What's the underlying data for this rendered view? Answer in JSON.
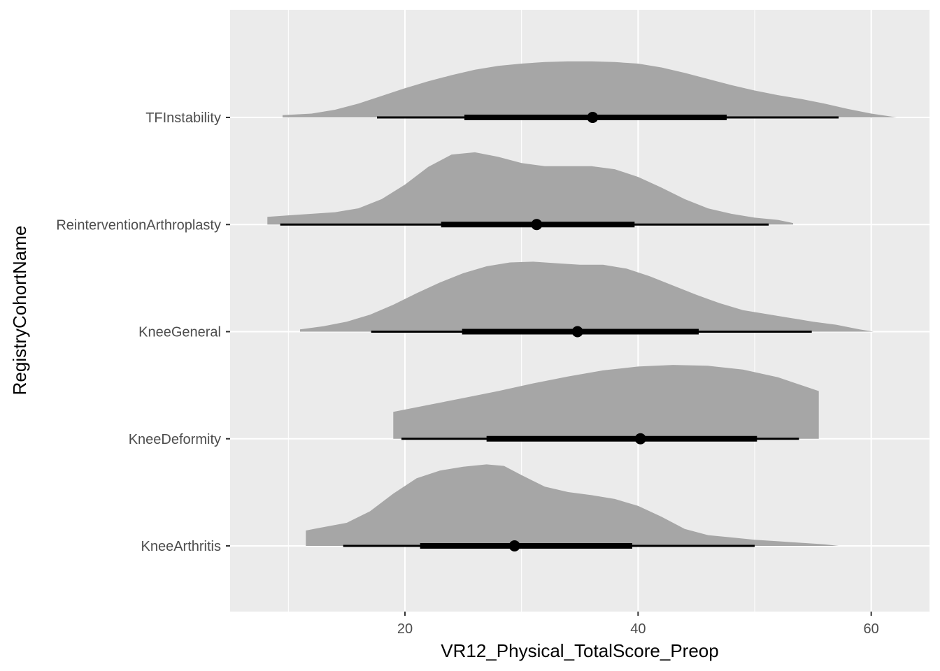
{
  "chart_data": {
    "type": "halfeye",
    "xlabel": "VR12_Physical_TotalScore_Preop",
    "ylabel": "RegistryCohortName",
    "xlim": [
      5,
      65
    ],
    "x_ticks": [
      20,
      40,
      60
    ],
    "categories": [
      "KneeArthritis",
      "KneeDeformity",
      "KneeGeneral",
      "ReinterventionArthroplasty",
      "TFInstability"
    ],
    "grid": true,
    "colors": {
      "panel": "#ebebeb",
      "grid": "#ffffff",
      "density": "#a6a6a6",
      "interval": "#000000",
      "tick_text": "#4d4d4d",
      "tick_mark": "#333333"
    },
    "series": [
      {
        "name": "KneeArthritis",
        "point": 29.4,
        "interval_66": [
          21.3,
          39.5
        ],
        "interval_95": [
          14.7,
          50.0
        ],
        "density_x": [
          11.5,
          12.5,
          15,
          17,
          19,
          21,
          23,
          25,
          27,
          28.5,
          30,
          32,
          34,
          36,
          38,
          40,
          42,
          44,
          46,
          48,
          50,
          52,
          54,
          56,
          57.2
        ],
        "density_y": [
          0.2,
          0.23,
          0.3,
          0.45,
          0.68,
          0.88,
          0.98,
          1.03,
          1.06,
          1.04,
          0.92,
          0.77,
          0.7,
          0.66,
          0.61,
          0.52,
          0.38,
          0.22,
          0.14,
          0.11,
          0.08,
          0.06,
          0.04,
          0.02,
          0.0
        ]
      },
      {
        "name": "KneeDeformity",
        "point": 40.2,
        "interval_66": [
          27.0,
          50.2
        ],
        "interval_95": [
          19.7,
          53.8
        ],
        "density_x": [
          19.0,
          22,
          25,
          28,
          31,
          34,
          37,
          40,
          43,
          46,
          49,
          52,
          55.5
        ],
        "density_y": [
          0.35,
          0.44,
          0.53,
          0.62,
          0.72,
          0.81,
          0.89,
          0.94,
          0.96,
          0.95,
          0.9,
          0.8,
          0.62
        ]
      },
      {
        "name": "KneeGeneral",
        "point": 34.8,
        "interval_66": [
          24.9,
          45.2
        ],
        "interval_95": [
          17.1,
          54.9
        ],
        "density_x": [
          11.0,
          13,
          15,
          17,
          19,
          21,
          23,
          25,
          27,
          29,
          31,
          33,
          35,
          37,
          39,
          41,
          43,
          45,
          47,
          49,
          51,
          53,
          55,
          57,
          59,
          60.2
        ],
        "density_y": [
          0.03,
          0.07,
          0.13,
          0.22,
          0.35,
          0.5,
          0.64,
          0.76,
          0.85,
          0.9,
          0.91,
          0.89,
          0.87,
          0.87,
          0.82,
          0.72,
          0.6,
          0.48,
          0.37,
          0.28,
          0.23,
          0.18,
          0.13,
          0.09,
          0.03,
          0.0
        ]
      },
      {
        "name": "ReinterventionArthroplasty",
        "point": 31.3,
        "interval_66": [
          23.1,
          39.7
        ],
        "interval_95": [
          9.3,
          51.2
        ],
        "density_x": [
          8.2,
          10,
          12,
          14,
          16,
          18,
          20,
          22,
          24,
          26,
          28,
          30,
          32,
          34,
          36,
          38,
          40,
          42,
          44,
          46,
          48,
          50,
          52,
          53.3
        ],
        "density_y": [
          0.1,
          0.12,
          0.14,
          0.16,
          0.21,
          0.33,
          0.52,
          0.75,
          0.91,
          0.94,
          0.88,
          0.8,
          0.76,
          0.76,
          0.76,
          0.72,
          0.62,
          0.48,
          0.33,
          0.21,
          0.14,
          0.09,
          0.06,
          0.02
        ]
      },
      {
        "name": "TFInstability",
        "point": 36.1,
        "interval_66": [
          25.1,
          47.6
        ],
        "interval_95": [
          17.6,
          57.2
        ],
        "density_x": [
          9.5,
          12,
          14,
          16,
          18,
          20,
          22,
          24,
          26,
          28,
          30,
          32,
          34,
          36,
          38,
          40,
          42,
          44,
          46,
          48,
          50,
          52,
          54,
          56,
          58,
          60,
          62.2
        ],
        "density_y": [
          0.03,
          0.05,
          0.1,
          0.18,
          0.28,
          0.38,
          0.47,
          0.55,
          0.62,
          0.67,
          0.7,
          0.72,
          0.73,
          0.73,
          0.72,
          0.7,
          0.65,
          0.58,
          0.5,
          0.42,
          0.35,
          0.29,
          0.24,
          0.18,
          0.11,
          0.05,
          0.0
        ]
      }
    ]
  }
}
